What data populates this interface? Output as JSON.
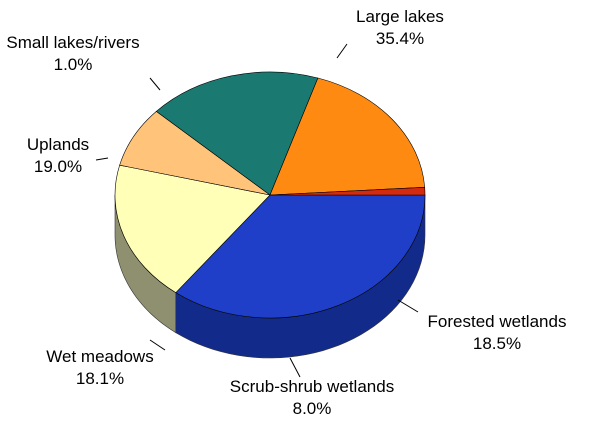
{
  "chart_data": {
    "type": "pie",
    "title": "",
    "slices": [
      {
        "label": "Large lakes",
        "percent_text": "35.4%",
        "value": 35.4,
        "color": "#1f3fc8",
        "dark": "#122a8a"
      },
      {
        "label": "Forested wetlands",
        "percent_text": "18.5%",
        "value": 18.5,
        "color": "#ffffb8",
        "dark": "#8f9070"
      },
      {
        "label": "Scrub-shrub wetlands",
        "percent_text": "8.0%",
        "value": 8.0,
        "color": "#ffc47a",
        "dark": "#8c5a2a"
      },
      {
        "label": "Wet meadows",
        "percent_text": "18.1%",
        "value": 18.1,
        "color": "#1a7a72",
        "dark": "#0f4a46"
      },
      {
        "label": "Uplands",
        "percent_text": "19.0%",
        "value": 19.0,
        "color": "#ff8a12",
        "dark": "#9a5008"
      },
      {
        "label": "Small lakes/rivers",
        "percent_text": "1.0%",
        "value": 1.0,
        "color": "#d42a10",
        "dark": "#801808"
      }
    ]
  }
}
